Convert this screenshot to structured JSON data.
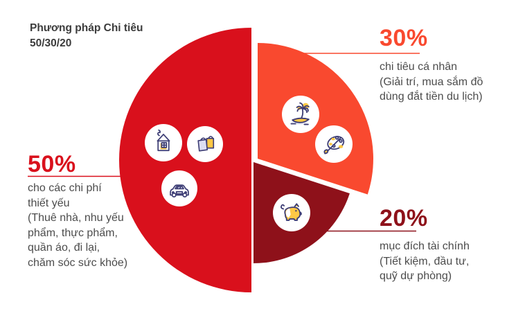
{
  "title": {
    "line1": "Phương pháp Chi tiêu",
    "line2": "50/30/20"
  },
  "chart_data": {
    "type": "pie",
    "title": "Phương pháp Chi tiêu 50/30/20",
    "unit": "%",
    "legend_position": "none",
    "start_angle_reference": "12-o-clock, clockwise",
    "slices": [
      {
        "label": "50%",
        "value": 50,
        "start_angle": 180,
        "end_angle": 360,
        "color": "#D9101C",
        "category": "cho các chi phí thiết yếu",
        "detail": "Thuê nhà, nhu yếu phẩm, thực phẩm, quần áo, đi lại, chăm sóc sức khỏe",
        "icons": [
          "house",
          "shopping-bags",
          "car"
        ]
      },
      {
        "label": "30%",
        "value": 30,
        "start_angle": 0,
        "end_angle": 108,
        "color": "#F9492F",
        "category": "chi tiêu cá nhân",
        "detail": "Giải trí, mua sắm đồ dùng đắt tiền du lịch",
        "icons": [
          "island-vacation",
          "paint-palette"
        ]
      },
      {
        "label": "20%",
        "value": 20,
        "start_angle": 108,
        "end_angle": 180,
        "color": "#8E111A",
        "category": "mục đích tài chính",
        "detail": "Tiết kiệm, đầu tư, quỹ dự phòng",
        "icons": [
          "piggy-bank"
        ]
      }
    ]
  },
  "labels": {
    "p50": {
      "pct": "50%",
      "lines": [
        "cho các chi phí",
        "thiết yếu",
        "(Thuê nhà, nhu yếu",
        "phẩm, thực phẩm,",
        "quần áo, đi lại,",
        "chăm sóc sức khỏe)"
      ]
    },
    "p30": {
      "pct": "30%",
      "lines": [
        "chi tiêu cá nhân",
        "(Giải trí, mua sắm đồ",
        "dùng đắt tiền du lịch)"
      ]
    },
    "p20": {
      "pct": "20%",
      "lines": [
        "mục đích tài chính",
        "(Tiết kiệm, đầu tư,",
        "quỹ dự phòng)"
      ]
    }
  },
  "icon_colors": {
    "outline": "#3C3C74",
    "accent": "#FFC845",
    "shadow": "#E9EBF5"
  }
}
